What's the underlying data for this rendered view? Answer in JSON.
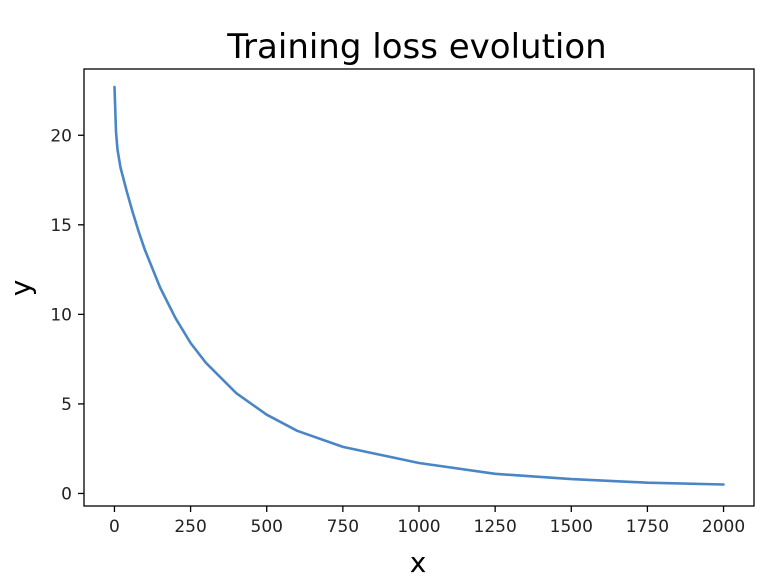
{
  "chart_data": {
    "type": "line",
    "title": "Training loss evolution",
    "xlabel": "x",
    "ylabel": "y",
    "xlim": [
      -100,
      2100
    ],
    "ylim": [
      -0.7,
      23.7
    ],
    "xticks": [
      0,
      250,
      500,
      750,
      1000,
      1250,
      1500,
      1750,
      2000
    ],
    "yticks": [
      0,
      5,
      10,
      15,
      20
    ],
    "grid": false,
    "series": [
      {
        "color": "#4a86c5",
        "x": [
          0,
          5,
          10,
          20,
          40,
          60,
          80,
          100,
          150,
          200,
          250,
          300,
          400,
          500,
          600,
          750,
          1000,
          1250,
          1500,
          1750,
          2000
        ],
        "y": [
          22.7,
          20.2,
          19.2,
          18.2,
          16.9,
          15.7,
          14.6,
          13.6,
          11.5,
          9.8,
          8.4,
          7.3,
          5.6,
          4.4,
          3.5,
          2.6,
          1.7,
          1.1,
          0.8,
          0.6,
          0.5
        ]
      }
    ]
  }
}
